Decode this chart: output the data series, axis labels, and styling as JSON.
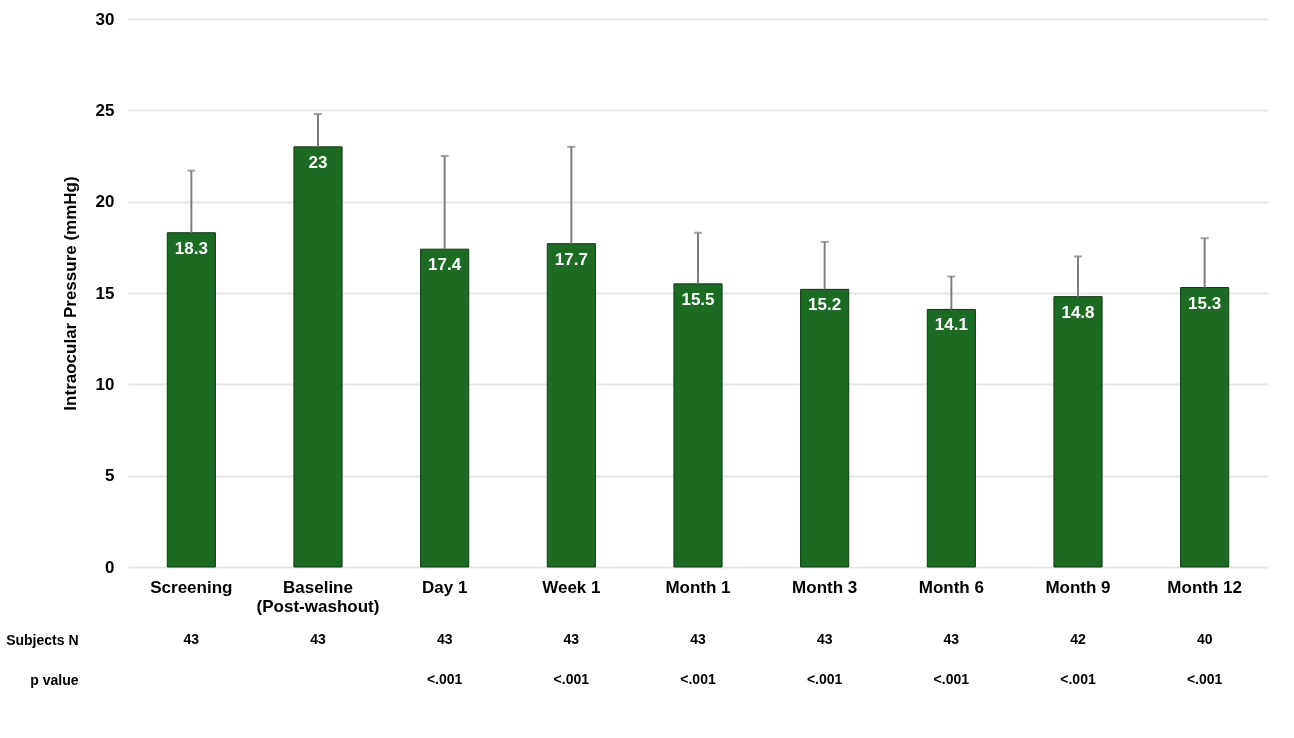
{
  "chart_data": {
    "type": "bar",
    "ylabel": "Intraocular Pressure (mmHg)",
    "categories": [
      "Screening",
      "Baseline\n(Post-washout)",
      "Day 1",
      "Week 1",
      "Month 1",
      "Month 3",
      "Month 6",
      "Month 9",
      "Month 12"
    ],
    "values": [
      18.3,
      23,
      17.4,
      17.7,
      15.5,
      15.2,
      14.1,
      14.8,
      15.3
    ],
    "errors": [
      [
        18.3,
        21.7
      ],
      [
        23,
        24.8
      ],
      [
        17.4,
        22.5
      ],
      [
        17.7,
        23.0
      ],
      [
        15.5,
        18.3
      ],
      [
        15.2,
        17.8
      ],
      [
        14.1,
        15.9
      ],
      [
        14.8,
        17.0
      ],
      [
        15.3,
        18.0
      ]
    ],
    "color": "#1b6b22",
    "data_labels": true,
    "ylim": [
      0,
      30
    ],
    "yticks": [
      0,
      5,
      10,
      15,
      20,
      25,
      30
    ],
    "grid": "y",
    "annotations": [
      "Subjects N",
      "43",
      "43",
      "43",
      "43",
      "43",
      "43",
      "43",
      "42",
      "40",
      "p value",
      "<.001",
      "<.001",
      "<.001",
      "<.001",
      "<.001",
      "<.001",
      "<.001"
    ]
  }
}
